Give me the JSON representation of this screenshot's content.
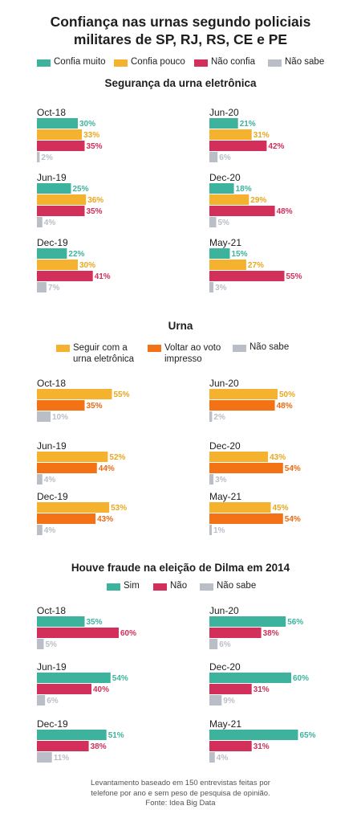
{
  "title_line1": "Confiança nas urnas segundo policiais",
  "title_line2": "militares de SP, RJ, RS, CE e PE",
  "legends": [
    {
      "items": [
        {
          "label": "Confia muito",
          "color": "#3db39e"
        },
        {
          "label": "Confia pouco",
          "color": "#f5b22e"
        },
        {
          "label": "Não confia",
          "color": "#d22f5b"
        },
        {
          "label": "Não sabe",
          "color": "#b9bec7"
        }
      ]
    },
    {
      "items": [
        {
          "label": "Seguir com a urna eletrônica",
          "color": "#f5b22e"
        },
        {
          "label": "Voltar ao voto impresso",
          "color": "#f47216"
        },
        {
          "label": "Não sabe",
          "color": "#b9bec7"
        }
      ]
    },
    {
      "items": [
        {
          "label": "Sim",
          "color": "#3db39e"
        },
        {
          "label": "Não",
          "color": "#d22f5b"
        },
        {
          "label": "Não sabe",
          "color": "#b9bec7"
        }
      ]
    }
  ],
  "chart_data": [
    {
      "type": "bar",
      "title": "Segurança da urna eletrônica",
      "series_names": [
        "Confia muito",
        "Confia pouco",
        "Não confia",
        "Não sabe"
      ],
      "colors": [
        "#3db39e",
        "#f5b22e",
        "#d22f5b",
        "#b9bec7"
      ],
      "panels": [
        {
          "label": "Oct-18",
          "values": [
            30,
            33,
            35,
            2
          ]
        },
        {
          "label": "Jun-20",
          "values": [
            21,
            31,
            42,
            6
          ]
        },
        {
          "label": "Jun-19",
          "values": [
            25,
            36,
            35,
            4
          ]
        },
        {
          "label": "Dec-20",
          "values": [
            18,
            29,
            48,
            5
          ]
        },
        {
          "label": "Dec-19",
          "values": [
            22,
            30,
            41,
            7
          ]
        },
        {
          "label": "May-21",
          "values": [
            15,
            27,
            55,
            3
          ]
        }
      ]
    },
    {
      "type": "bar",
      "title": "Urna",
      "series_names": [
        "Seguir com a urna eletrônica",
        "Voltar ao voto impresso",
        "Não sabe"
      ],
      "colors": [
        "#f5b22e",
        "#f47216",
        "#b9bec7"
      ],
      "panels": [
        {
          "label": "Oct-18",
          "values": [
            55,
            35,
            10
          ]
        },
        {
          "label": "Jun-20",
          "values": [
            50,
            48,
            2
          ]
        },
        {
          "label": "Jun-19",
          "values": [
            52,
            44,
            4
          ]
        },
        {
          "label": "Dec-20",
          "values": [
            43,
            54,
            3
          ]
        },
        {
          "label": "Dec-19",
          "values": [
            53,
            43,
            4
          ]
        },
        {
          "label": "May-21",
          "values": [
            45,
            54,
            1
          ]
        }
      ]
    },
    {
      "type": "bar",
      "title": "Houve fraude na eleição de Dilma em 2014",
      "series_names": [
        "Sim",
        "Não",
        "Não sabe"
      ],
      "colors": [
        "#3db39e",
        "#d22f5b",
        "#b9bec7"
      ],
      "panels": [
        {
          "label": "Oct-18",
          "values": [
            35,
            60,
            5
          ]
        },
        {
          "label": "Jun-20",
          "values": [
            56,
            38,
            6
          ]
        },
        {
          "label": "Jun-19",
          "values": [
            54,
            40,
            6
          ]
        },
        {
          "label": "Dec-20",
          "values": [
            60,
            31,
            9
          ]
        },
        {
          "label": "Dec-19",
          "values": [
            51,
            38,
            11
          ]
        },
        {
          "label": "May-21",
          "values": [
            65,
            31,
            4
          ]
        }
      ]
    }
  ],
  "footnote_line1": "Levantamento baseado em 150 entrevistas feitas por",
  "footnote_line2": "telefone por ano e sem peso de pesquisa de opinião.",
  "footnote_line3": "Fonte: Idea Big Data"
}
